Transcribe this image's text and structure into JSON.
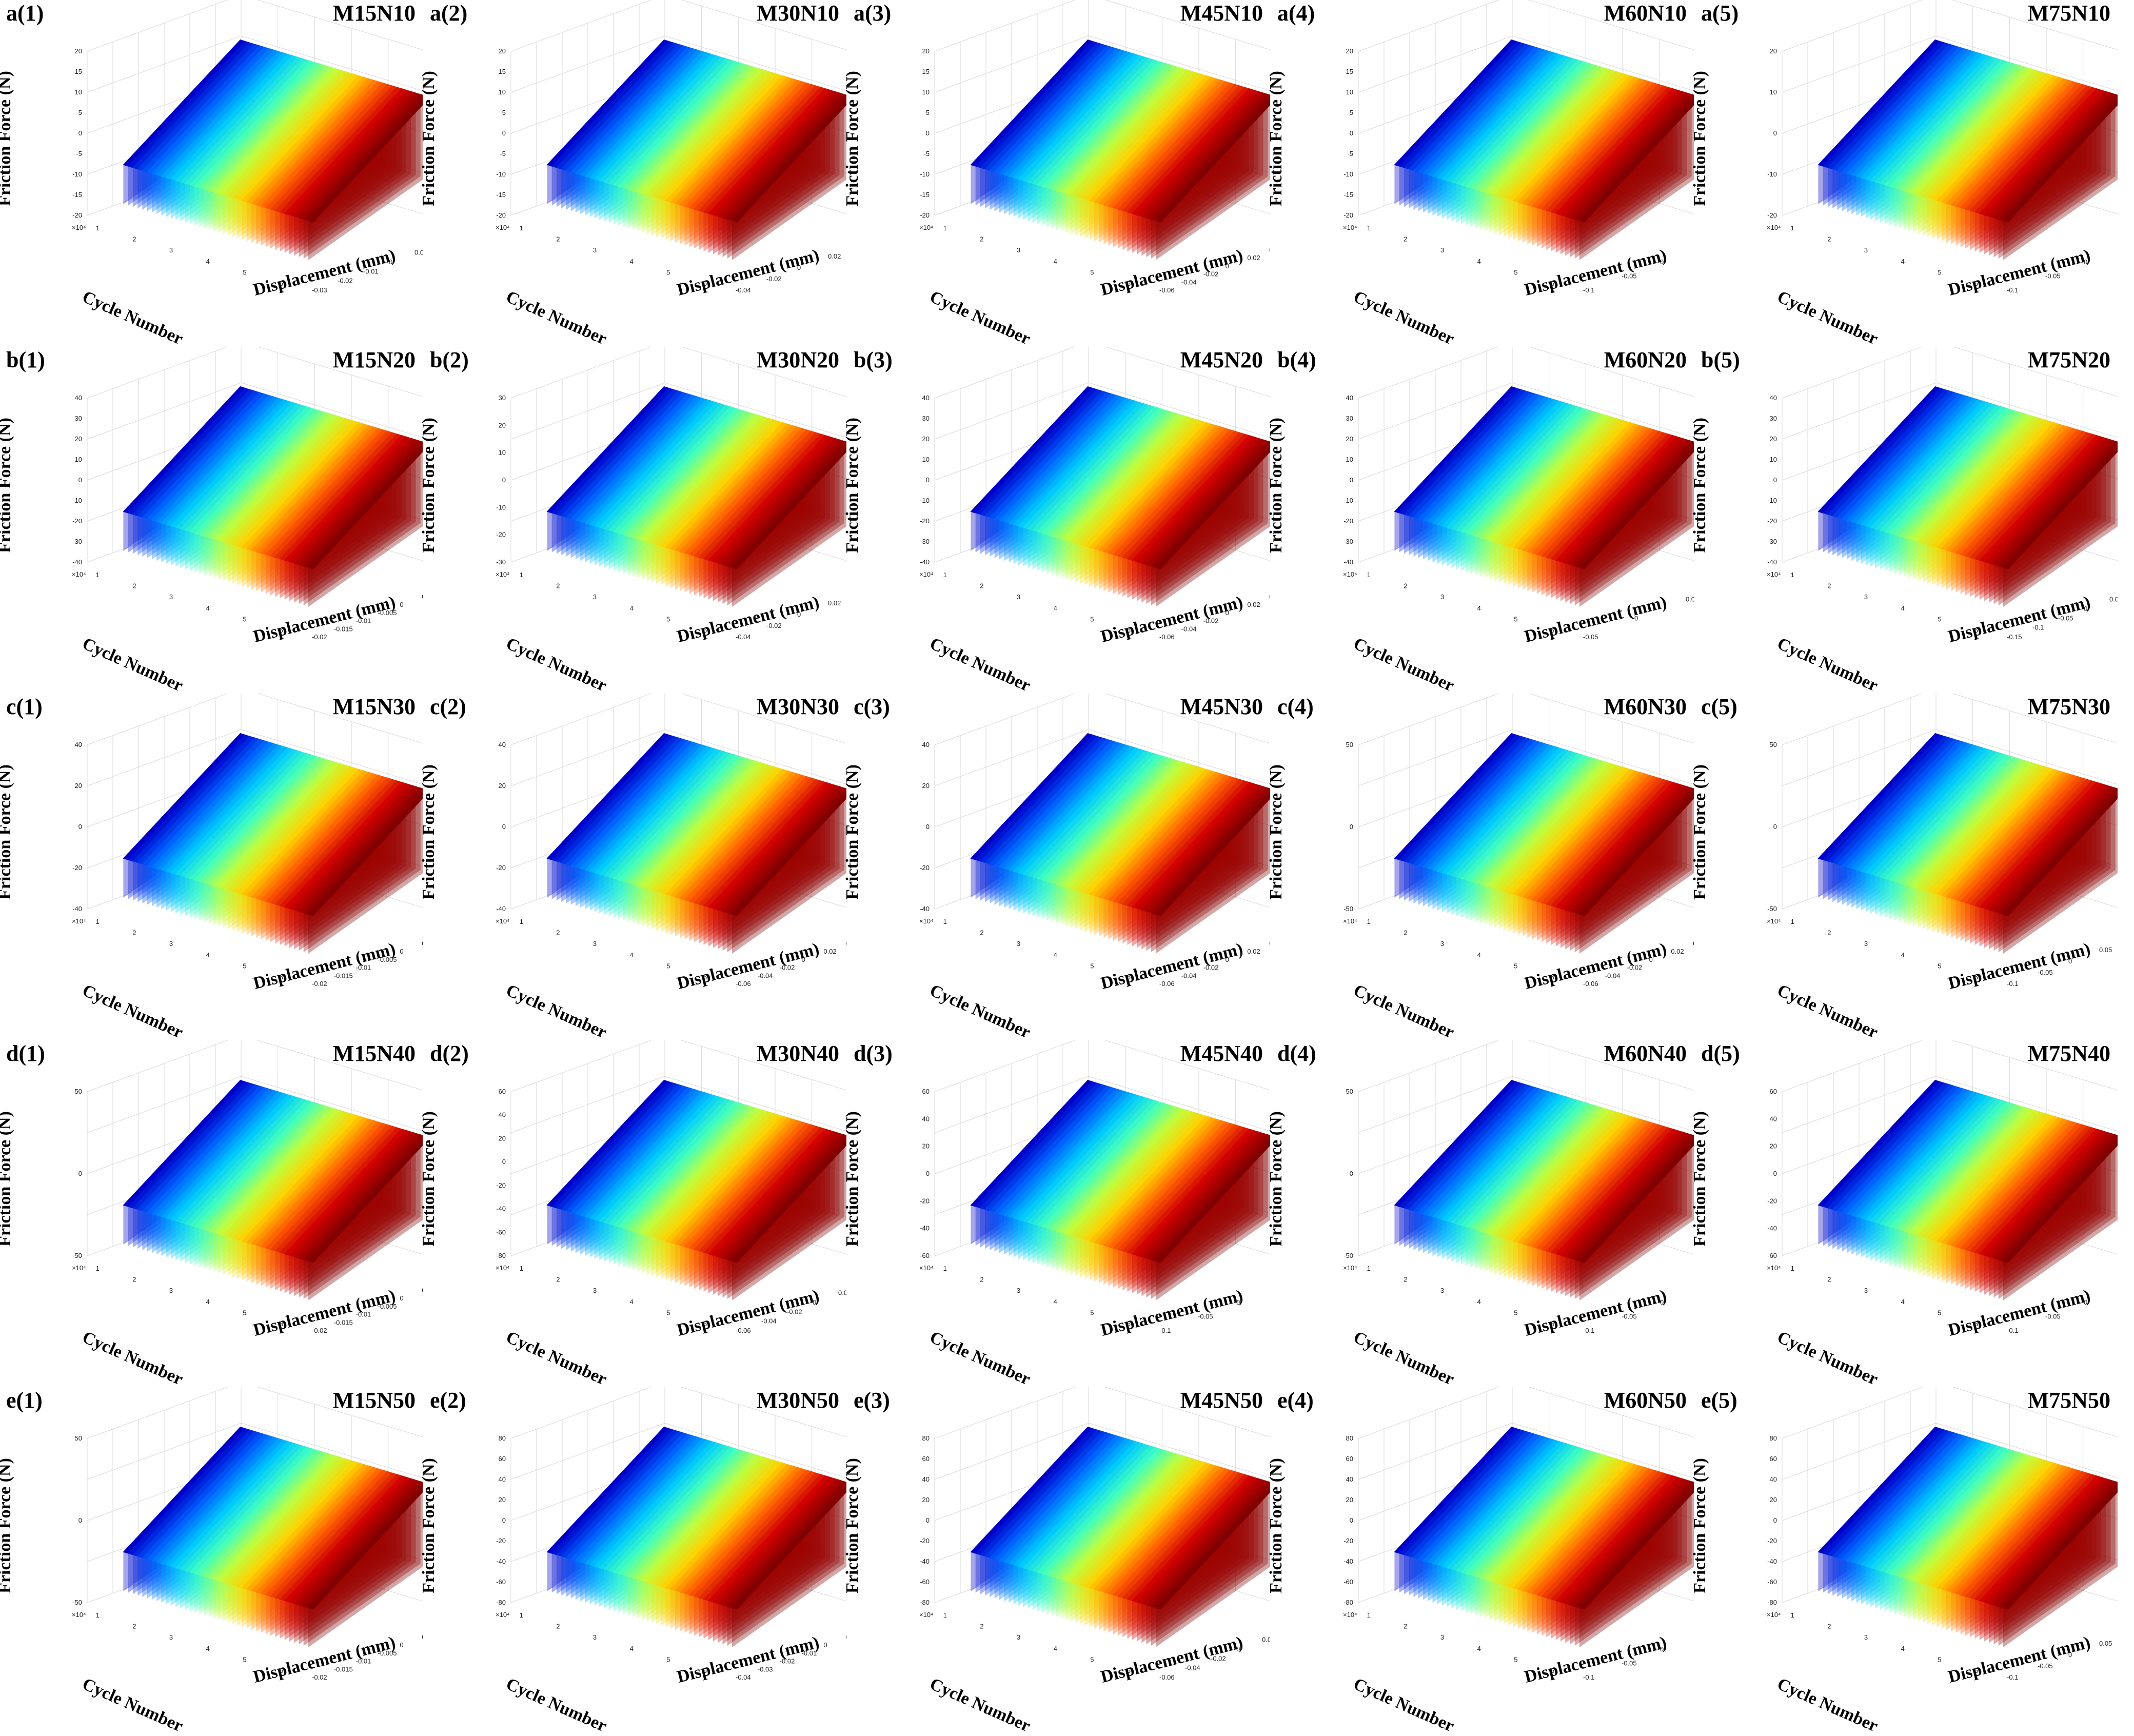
{
  "chart_data": {
    "type": "surface-3d-grid",
    "rows": [
      {
        "panels": [
          {
            "id": "a(1)",
            "title": "M15N10",
            "force_ticks": [
              "20",
              "15",
              "10",
              "5",
              "0",
              "-5",
              "-10",
              "-15",
              "-20"
            ],
            "disp_ticks": [
              "-0.03",
              "-0.02",
              "-0.01",
              "0",
              "0.01",
              "0.02",
              "0.03"
            ],
            "cycle_ticks": [
              "1",
              "2",
              "3",
              "4",
              "5",
              "6"
            ],
            "exp": "×10⁴"
          },
          {
            "id": "a(2)",
            "title": "M30N10",
            "force_ticks": [
              "20",
              "15",
              "10",
              "5",
              "0",
              "-5",
              "-10",
              "-15",
              "-20"
            ],
            "disp_ticks": [
              "-0.04",
              "-0.02",
              "0",
              "0.02",
              "0.04",
              "0.06"
            ],
            "cycle_ticks": [
              "1",
              "2",
              "3",
              "4",
              "5",
              "6"
            ],
            "exp": "×10⁴"
          },
          {
            "id": "a(3)",
            "title": "M45N10",
            "force_ticks": [
              "20",
              "15",
              "10",
              "5",
              "0",
              "-5",
              "-10",
              "-15",
              "-20"
            ],
            "disp_ticks": [
              "-0.06",
              "-0.04",
              "-0.02",
              "0",
              "0.02",
              "0.04",
              "0.06",
              "0.08"
            ],
            "cycle_ticks": [
              "1",
              "2",
              "3",
              "4",
              "5",
              "6"
            ],
            "exp": "×10⁴"
          },
          {
            "id": "a(4)",
            "title": "M60N10",
            "force_ticks": [
              "20",
              "15",
              "10",
              "5",
              "0",
              "-5",
              "-10",
              "-15",
              "-20"
            ],
            "disp_ticks": [
              "-0.1",
              "-0.05",
              "0",
              "0.05",
              "0.1"
            ],
            "cycle_ticks": [
              "1",
              "2",
              "3",
              "4",
              "5",
              "6"
            ],
            "exp": "×10⁴"
          },
          {
            "id": "a(5)",
            "title": "M75N10",
            "force_ticks": [
              "20",
              "10",
              "0",
              "-10",
              "-20"
            ],
            "disp_ticks": [
              "-0.1",
              "-0.05",
              "0",
              "0.05",
              "0.1"
            ],
            "cycle_ticks": [
              "1",
              "2",
              "3",
              "4",
              "5",
              "6"
            ],
            "exp": "×10⁴"
          }
        ]
      },
      {
        "panels": [
          {
            "id": "b(1)",
            "title": "M15N20",
            "force_ticks": [
              "40",
              "30",
              "20",
              "10",
              "0",
              "-10",
              "-20",
              "-30",
              "-40"
            ],
            "disp_ticks": [
              "-0.02",
              "-0.015",
              "-0.01",
              "-0.005",
              "0",
              "0.005",
              "0.01",
              "0.015"
            ],
            "cycle_ticks": [
              "1",
              "2",
              "3",
              "4",
              "5",
              "6"
            ],
            "exp": "×10⁴"
          },
          {
            "id": "b(2)",
            "title": "M30N20",
            "force_ticks": [
              "30",
              "20",
              "10",
              "0",
              "-10",
              "-20",
              "-30"
            ],
            "disp_ticks": [
              "-0.04",
              "-0.02",
              "0",
              "0.02",
              "0.04",
              "0.06"
            ],
            "cycle_ticks": [
              "1",
              "2",
              "3",
              "4",
              "5",
              "6"
            ],
            "exp": "×10⁴"
          },
          {
            "id": "b(3)",
            "title": "M45N20",
            "force_ticks": [
              "40",
              "30",
              "20",
              "10",
              "0",
              "-10",
              "-20",
              "-30",
              "-40"
            ],
            "disp_ticks": [
              "-0.06",
              "-0.04",
              "-0.02",
              "0",
              "0.02",
              "0.04",
              "0.06",
              "0.08"
            ],
            "cycle_ticks": [
              "1",
              "2",
              "3",
              "4",
              "5",
              "6"
            ],
            "exp": "×10⁴"
          },
          {
            "id": "b(4)",
            "title": "M60N20",
            "force_ticks": [
              "40",
              "30",
              "20",
              "10",
              "0",
              "-10",
              "-20",
              "-30",
              "-40"
            ],
            "disp_ticks": [
              "-0.05",
              "0",
              "0.05",
              "0.1"
            ],
            "cycle_ticks": [
              "1",
              "2",
              "3",
              "4",
              "5",
              "6"
            ],
            "exp": "×10⁴"
          },
          {
            "id": "b(5)",
            "title": "M75N20",
            "force_ticks": [
              "40",
              "30",
              "20",
              "10",
              "0",
              "-10",
              "-20",
              "-30",
              "-40"
            ],
            "disp_ticks": [
              "-0.15",
              "-0.1",
              "-0.05",
              "0",
              "0.05",
              "0.1",
              "0.15"
            ],
            "cycle_ticks": [
              "1",
              "2",
              "3",
              "4",
              "5",
              "6"
            ],
            "exp": "×10⁴"
          }
        ]
      },
      {
        "panels": [
          {
            "id": "c(1)",
            "title": "M15N30",
            "force_ticks": [
              "40",
              "20",
              "0",
              "-20",
              "-40"
            ],
            "disp_ticks": [
              "-0.02",
              "-0.015",
              "-0.01",
              "-0.005",
              "0",
              "0.005",
              "0.01",
              "0.015"
            ],
            "cycle_ticks": [
              "1",
              "2",
              "3",
              "4",
              "5",
              "6"
            ],
            "exp": "×10⁴"
          },
          {
            "id": "c(2)",
            "title": "M30N30",
            "force_ticks": [
              "40",
              "20",
              "0",
              "-20",
              "-40"
            ],
            "disp_ticks": [
              "-0.06",
              "-0.04",
              "-0.02",
              "0",
              "0.02",
              "0.04",
              "0.06",
              "0.08"
            ],
            "cycle_ticks": [
              "1",
              "2",
              "3",
              "4",
              "5",
              "6"
            ],
            "exp": "×10⁴"
          },
          {
            "id": "c(3)",
            "title": "M45N30",
            "force_ticks": [
              "40",
              "20",
              "0",
              "-20",
              "-40"
            ],
            "disp_ticks": [
              "-0.06",
              "-0.04",
              "-0.02",
              "0",
              "0.02",
              "0.04",
              "0.06",
              "0.08"
            ],
            "cycle_ticks": [
              "1",
              "2",
              "3",
              "4",
              "5",
              "6"
            ],
            "exp": "×10⁴"
          },
          {
            "id": "c(4)",
            "title": "M60N30",
            "force_ticks": [
              "50",
              "0",
              "-50"
            ],
            "disp_ticks": [
              "-0.06",
              "-0.04",
              "-0.02",
              "0",
              "0.02",
              "0.04",
              "0.06",
              "0.08"
            ],
            "cycle_ticks": [
              "1",
              "2",
              "3",
              "4",
              "5",
              "6"
            ],
            "exp": "×10⁴"
          },
          {
            "id": "c(5)",
            "title": "M75N30",
            "force_ticks": [
              "50",
              "0",
              "-50"
            ],
            "disp_ticks": [
              "-0.1",
              "-0.05",
              "0",
              "0.05",
              "0.1",
              "0.15"
            ],
            "cycle_ticks": [
              "1",
              "2",
              "3",
              "4",
              "5",
              "6"
            ],
            "exp": "×10⁴"
          }
        ]
      },
      {
        "panels": [
          {
            "id": "d(1)",
            "title": "M15N40",
            "force_ticks": [
              "50",
              "0",
              "-50"
            ],
            "disp_ticks": [
              "-0.02",
              "-0.015",
              "-0.01",
              "-0.005",
              "0",
              "0.005",
              "0.01",
              "0.015"
            ],
            "cycle_ticks": [
              "1",
              "2",
              "3",
              "4",
              "5",
              "6"
            ],
            "exp": "×10⁴"
          },
          {
            "id": "d(2)",
            "title": "M30N40",
            "force_ticks": [
              "60",
              "40",
              "20",
              "0",
              "-20",
              "-40",
              "-60",
              "-80"
            ],
            "disp_ticks": [
              "-0.06",
              "-0.04",
              "-0.02",
              "0",
              "0.02",
              "0.04",
              "0.06"
            ],
            "cycle_ticks": [
              "1",
              "2",
              "3",
              "4",
              "5",
              "6"
            ],
            "exp": "×10⁴"
          },
          {
            "id": "d(3)",
            "title": "M45N40",
            "force_ticks": [
              "60",
              "40",
              "20",
              "0",
              "-20",
              "-40",
              "-60"
            ],
            "disp_ticks": [
              "-0.1",
              "-0.05",
              "0",
              "0.05",
              "0.1"
            ],
            "cycle_ticks": [
              "1",
              "2",
              "3",
              "4",
              "5",
              "6"
            ],
            "exp": "×10⁴"
          },
          {
            "id": "d(4)",
            "title": "M60N40",
            "force_ticks": [
              "50",
              "0",
              "-50"
            ],
            "disp_ticks": [
              "-0.1",
              "-0.05",
              "0",
              "0.05",
              "0.1"
            ],
            "cycle_ticks": [
              "1",
              "2",
              "3",
              "4",
              "5",
              "6"
            ],
            "exp": "×10⁴"
          },
          {
            "id": "d(5)",
            "title": "M75N40",
            "force_ticks": [
              "60",
              "40",
              "20",
              "0",
              "-20",
              "-40",
              "-60"
            ],
            "disp_ticks": [
              "-0.1",
              "-0.05",
              "0",
              "0.05",
              "0.1"
            ],
            "cycle_ticks": [
              "1",
              "2",
              "3",
              "4",
              "5",
              "6"
            ],
            "exp": "×10⁴"
          }
        ]
      },
      {
        "panels": [
          {
            "id": "e(1)",
            "title": "M15N50",
            "force_ticks": [
              "50",
              "0",
              "-50"
            ],
            "disp_ticks": [
              "-0.02",
              "-0.015",
              "-0.01",
              "-0.005",
              "0",
              "0.005",
              "0.01",
              "0.015"
            ],
            "cycle_ticks": [
              "1",
              "2",
              "3",
              "4",
              "5",
              "6"
            ],
            "exp": "×10⁴"
          },
          {
            "id": "e(2)",
            "title": "M30N50",
            "force_ticks": [
              "80",
              "60",
              "40",
              "20",
              "0",
              "-20",
              "-40",
              "-60",
              "-80"
            ],
            "disp_ticks": [
              "-0.04",
              "-0.03",
              "-0.02",
              "-0.01",
              "0",
              "0.01",
              "0.02",
              "0.03"
            ],
            "cycle_ticks": [
              "1",
              "2",
              "3",
              "4",
              "5",
              "6"
            ],
            "exp": "×10⁴"
          },
          {
            "id": "e(3)",
            "title": "M45N50",
            "force_ticks": [
              "80",
              "60",
              "40",
              "20",
              "0",
              "-20",
              "-40",
              "-60",
              "-80"
            ],
            "disp_ticks": [
              "-0.06",
              "-0.04",
              "-0.02",
              "0",
              "0.02",
              "0.04",
              "0.06"
            ],
            "cycle_ticks": [
              "1",
              "2",
              "3",
              "4",
              "5",
              "6"
            ],
            "exp": "×10⁴"
          },
          {
            "id": "e(4)",
            "title": "M60N50",
            "force_ticks": [
              "80",
              "60",
              "40",
              "20",
              "0",
              "-20",
              "-40",
              "-60",
              "-80"
            ],
            "disp_ticks": [
              "-0.1",
              "-0.05",
              "0",
              "0.05",
              "0.1"
            ],
            "cycle_ticks": [
              "1",
              "2",
              "3",
              "4",
              "5",
              "6"
            ],
            "exp": "×10⁴"
          },
          {
            "id": "e(5)",
            "title": "M75N50",
            "force_ticks": [
              "80",
              "60",
              "40",
              "20",
              "0",
              "-20",
              "-40",
              "-60",
              "-80"
            ],
            "disp_ticks": [
              "-0.1",
              "-0.05",
              "0",
              "0.05",
              "0.1",
              "0.15"
            ],
            "cycle_ticks": [
              "1",
              "2",
              "3",
              "4",
              "5",
              "6"
            ],
            "exp": "×10⁴"
          }
        ]
      }
    ],
    "zlabel": "Friction Force (N)",
    "ylabel": "Cycle Number",
    "xlabel": "Displacement (mm)",
    "colormap": [
      "#0000c8",
      "#0060ff",
      "#00c8ff",
      "#40ffc0",
      "#c0ff40",
      "#ffd000",
      "#ff6000",
      "#d00000",
      "#800000"
    ]
  }
}
